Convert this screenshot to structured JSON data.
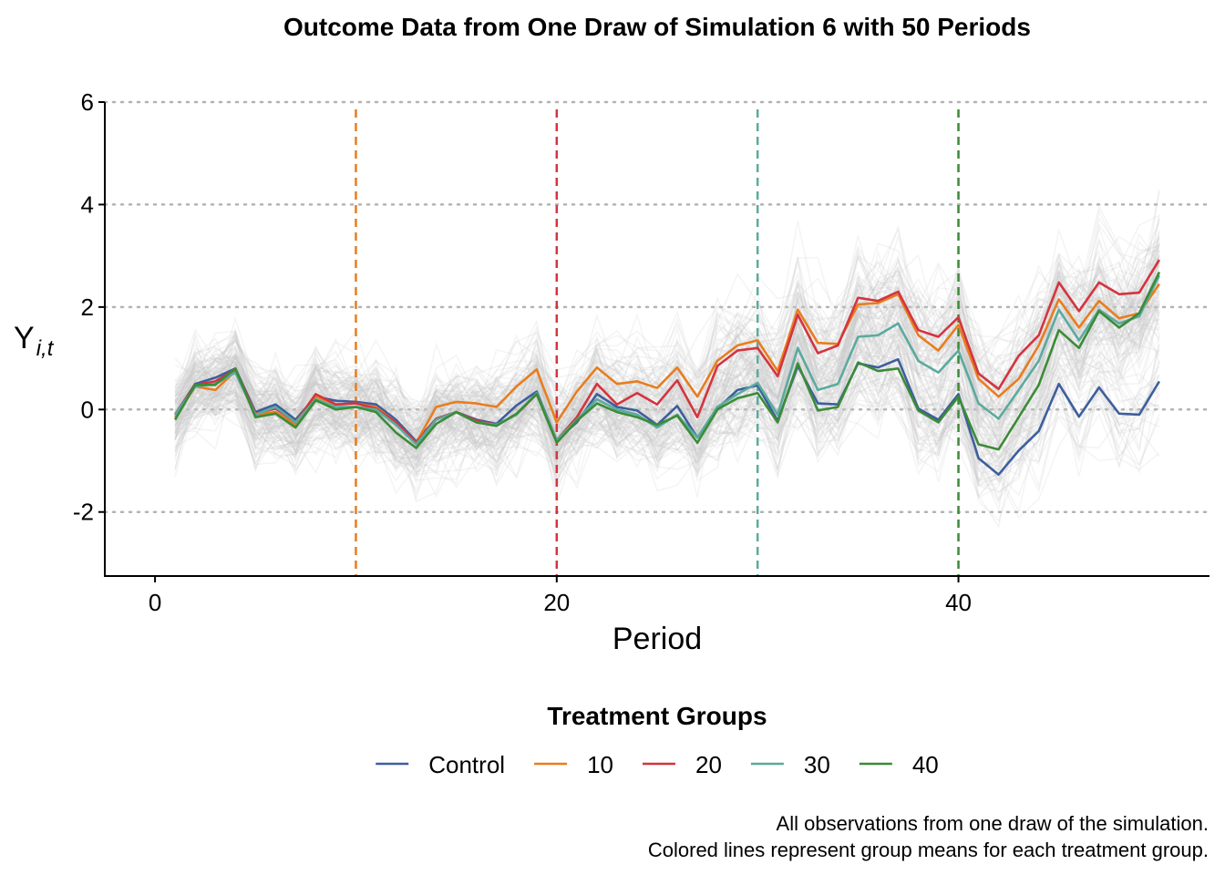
{
  "chart_data": {
    "type": "line",
    "title": "Outcome Data from One Draw of Simulation 6 with 50 Periods",
    "xlabel": "Period",
    "ylabel": {
      "main": "Y",
      "subscript": "i,t"
    },
    "xlim": [
      -2.5,
      52.5
    ],
    "ylim": [
      -3.25,
      6.0
    ],
    "x_ticks": [
      0,
      20,
      40
    ],
    "y_ticks": [
      6,
      4,
      2,
      0,
      -2
    ],
    "y_gridlines": [
      6,
      4,
      2,
      0,
      -2
    ],
    "legend": {
      "title": "Treatment Groups",
      "position": "bottom"
    },
    "caption": [
      "All observations from one draw of the simulation.",
      "Colored lines represent group means for each treatment group."
    ],
    "vertical_lines": [
      {
        "x": 10,
        "color": "#E87D1E",
        "style": "dashed"
      },
      {
        "x": 20,
        "color": "#D4343F",
        "style": "dashed"
      },
      {
        "x": 30,
        "color": "#5BAA9E",
        "style": "dashed"
      },
      {
        "x": 40,
        "color": "#3B8B37",
        "style": "dashed"
      }
    ],
    "individual_observations": {
      "color": "#c8c8c8",
      "description": "many semi-transparent gray lines, one per unit"
    },
    "x": [
      1,
      2,
      3,
      4,
      5,
      6,
      7,
      8,
      9,
      10,
      11,
      12,
      13,
      14,
      15,
      16,
      17,
      18,
      19,
      20,
      21,
      22,
      23,
      24,
      25,
      26,
      27,
      28,
      29,
      30,
      31,
      32,
      33,
      34,
      35,
      36,
      37,
      38,
      39,
      40,
      41,
      42,
      43,
      44,
      45,
      46,
      47,
      48,
      49,
      50
    ],
    "series": [
      {
        "name": "Control",
        "color": "#3D5E9E",
        "values": [
          -0.1,
          0.5,
          0.62,
          0.8,
          -0.05,
          0.1,
          -0.2,
          0.25,
          0.17,
          0.15,
          0.1,
          -0.2,
          -0.62,
          -0.18,
          -0.05,
          -0.2,
          -0.28,
          0.08,
          0.35,
          -0.6,
          -0.25,
          0.3,
          0.05,
          -0.02,
          -0.3,
          0.07,
          -0.55,
          0.02,
          0.38,
          0.47,
          -0.22,
          0.85,
          0.12,
          0.1,
          0.9,
          0.82,
          0.98,
          0.02,
          -0.2,
          0.3,
          -0.95,
          -1.27,
          -0.8,
          -0.42,
          0.5,
          -0.14,
          0.43,
          -0.08,
          -0.1,
          0.55
        ]
      },
      {
        "name": "10",
        "color": "#E87D1E",
        "values": [
          -0.15,
          0.45,
          0.38,
          0.75,
          -0.1,
          -0.05,
          -0.3,
          0.25,
          0.1,
          0.12,
          0.05,
          -0.25,
          -0.65,
          0.05,
          0.15,
          0.12,
          0.05,
          0.45,
          0.78,
          -0.25,
          0.35,
          0.82,
          0.5,
          0.55,
          0.42,
          0.82,
          0.25,
          0.95,
          1.25,
          1.35,
          0.75,
          1.95,
          1.3,
          1.28,
          2.05,
          2.08,
          2.25,
          1.45,
          1.15,
          1.65,
          0.6,
          0.25,
          0.6,
          1.25,
          2.15,
          1.6,
          2.12,
          1.78,
          1.88,
          2.45
        ]
      },
      {
        "name": "20",
        "color": "#D4343F",
        "values": [
          -0.1,
          0.48,
          0.55,
          0.78,
          -0.08,
          0.02,
          -0.25,
          0.3,
          0.1,
          0.12,
          0.02,
          -0.25,
          -0.65,
          -0.18,
          -0.05,
          -0.22,
          -0.3,
          -0.1,
          0.3,
          -0.6,
          -0.15,
          0.5,
          0.1,
          0.32,
          0.1,
          0.57,
          -0.15,
          0.85,
          1.15,
          1.2,
          0.65,
          1.85,
          1.1,
          1.25,
          2.18,
          2.12,
          2.3,
          1.55,
          1.42,
          1.8,
          0.7,
          0.4,
          1.05,
          1.45,
          2.48,
          1.92,
          2.48,
          2.25,
          2.28,
          2.92
        ]
      },
      {
        "name": "30",
        "color": "#5BAA9E",
        "values": [
          -0.1,
          0.45,
          0.5,
          0.72,
          -0.1,
          0.05,
          -0.25,
          0.2,
          0.05,
          0.05,
          0.0,
          -0.3,
          -0.68,
          -0.2,
          -0.05,
          -0.25,
          -0.3,
          -0.1,
          0.32,
          -0.6,
          -0.2,
          0.2,
          0.0,
          -0.1,
          -0.35,
          -0.1,
          -0.55,
          0.05,
          0.3,
          0.52,
          -0.1,
          1.2,
          0.38,
          0.5,
          1.42,
          1.45,
          1.68,
          0.95,
          0.72,
          1.15,
          0.12,
          -0.18,
          0.38,
          0.95,
          1.95,
          1.35,
          1.95,
          1.68,
          1.82,
          2.62
        ]
      },
      {
        "name": "40",
        "color": "#3B8B37",
        "values": [
          -0.2,
          0.48,
          0.48,
          0.8,
          -0.15,
          -0.08,
          -0.35,
          0.18,
          0.0,
          0.05,
          -0.05,
          -0.45,
          -0.75,
          -0.28,
          -0.05,
          -0.25,
          -0.32,
          -0.08,
          0.3,
          -0.65,
          -0.22,
          0.12,
          -0.05,
          -0.15,
          -0.3,
          -0.12,
          -0.65,
          0.0,
          0.22,
          0.32,
          -0.25,
          0.9,
          -0.02,
          0.05,
          0.92,
          0.75,
          0.8,
          -0.02,
          -0.25,
          0.25,
          -0.68,
          -0.78,
          -0.15,
          0.48,
          1.55,
          1.2,
          1.92,
          1.6,
          1.88,
          2.68
        ]
      }
    ]
  }
}
